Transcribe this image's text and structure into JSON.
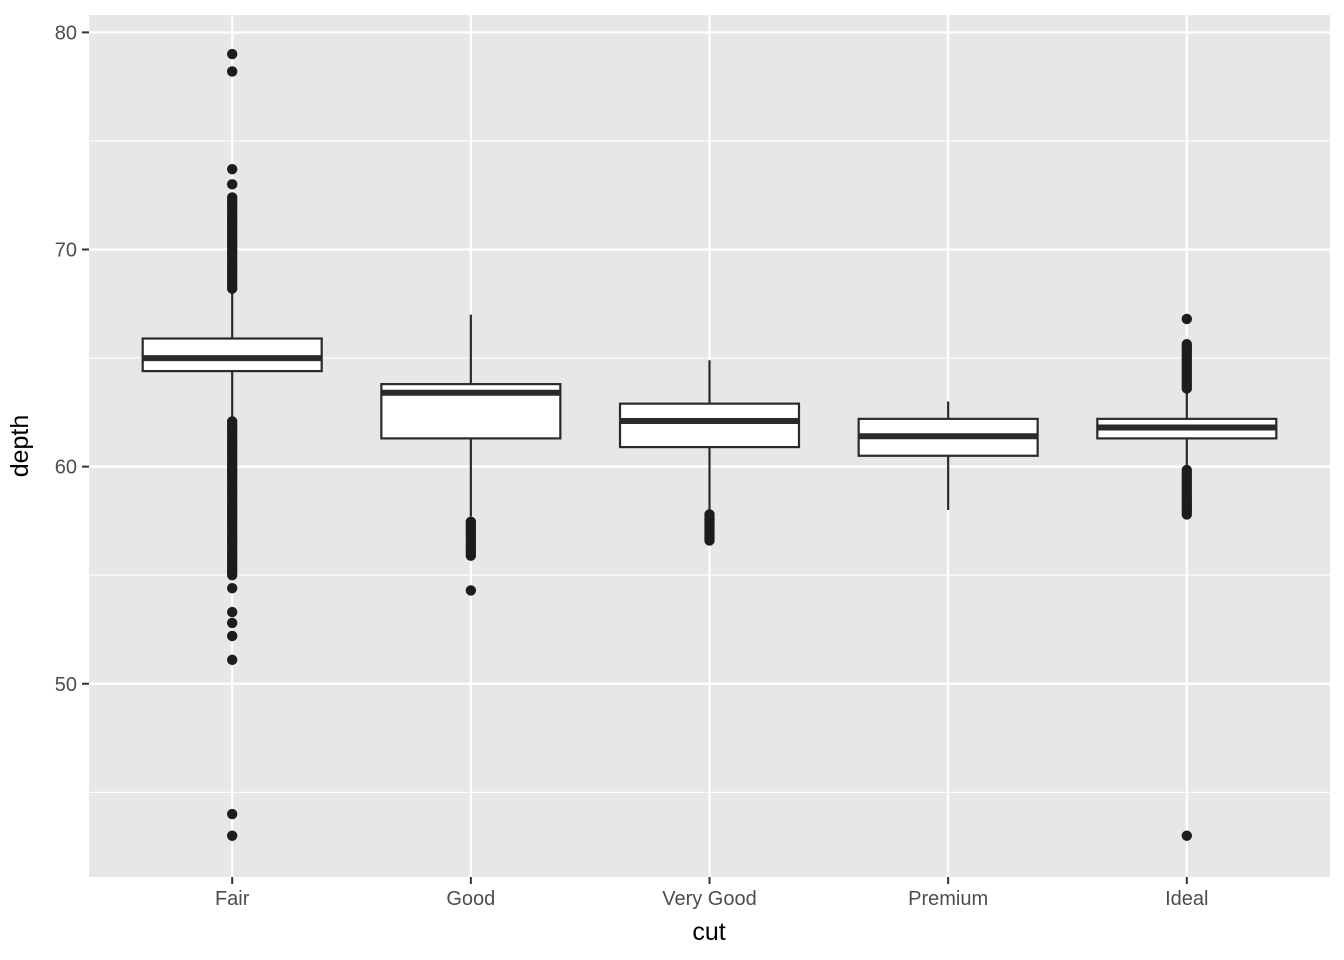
{
  "chart_data": {
    "type": "boxplot",
    "title": "",
    "xlabel": "cut",
    "ylabel": "depth",
    "categories": [
      "Fair",
      "Good",
      "Very Good",
      "Premium",
      "Ideal"
    ],
    "ylim": [
      41.1,
      80.8
    ],
    "y_ticks": [
      80,
      70,
      60,
      50
    ],
    "y_minor_ticks": [
      75,
      65,
      55,
      45
    ],
    "grid": "on",
    "legend": "none",
    "colors": {
      "panel_bg": "#E7E7E7",
      "grid": "#FFFFFF",
      "box_stroke": "#2A2A2A",
      "box_fill": "#FFFFFF",
      "outlier": "#1C1C1C",
      "tick_mark": "#333333",
      "tick_text": "#4D4D4D",
      "title_text": "#000000"
    },
    "series": [
      {
        "category": "Fair",
        "q1": 64.4,
        "median": 65.0,
        "q3": 65.9,
        "whisker_low": 62.2,
        "whisker_high": 68.1,
        "outlier_ranges": [
          [
            68.2,
            72.5
          ],
          [
            55.0,
            62.1
          ]
        ],
        "outlier_points": [
          73.0,
          73.7,
          78.2,
          79.0,
          54.4,
          53.3,
          52.8,
          52.2,
          51.1,
          44.0,
          43.0
        ]
      },
      {
        "category": "Good",
        "q1": 61.3,
        "median": 63.4,
        "q3": 63.8,
        "whisker_low": 57.7,
        "whisker_high": 67.0,
        "outlier_ranges": [
          [
            55.9,
            57.5
          ]
        ],
        "outlier_points": [
          54.3
        ]
      },
      {
        "category": "Very Good",
        "q1": 60.9,
        "median": 62.1,
        "q3": 62.9,
        "whisker_low": 58.0,
        "whisker_high": 64.9,
        "outlier_ranges": [
          [
            56.6,
            57.9
          ]
        ],
        "outlier_points": []
      },
      {
        "category": "Premium",
        "q1": 60.5,
        "median": 61.4,
        "q3": 62.2,
        "whisker_low": 58.0,
        "whisker_high": 63.0,
        "outlier_ranges": [],
        "outlier_points": []
      },
      {
        "category": "Ideal",
        "q1": 61.3,
        "median": 61.8,
        "q3": 62.2,
        "whisker_low": 60.0,
        "whisker_high": 63.5,
        "outlier_ranges": [
          [
            63.6,
            65.7
          ],
          [
            57.8,
            59.9
          ]
        ],
        "outlier_points": [
          66.8,
          43.0
        ]
      }
    ]
  }
}
